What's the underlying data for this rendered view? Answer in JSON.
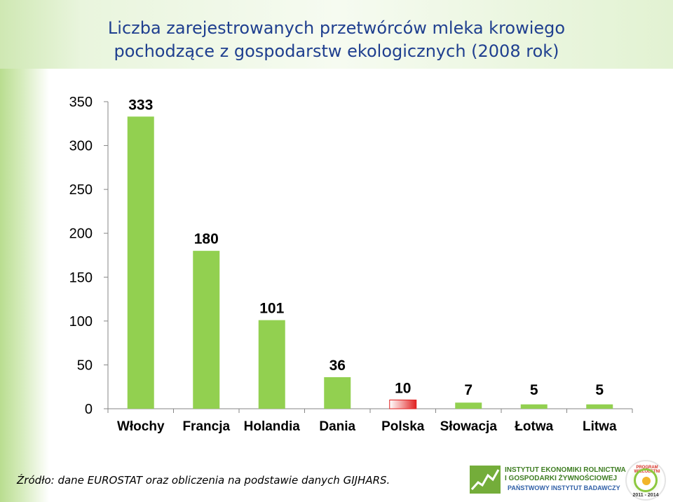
{
  "title": {
    "line1": "Liczba zarejestrowanych przetwórców mleka krowiego",
    "line2": "pochodzące z gospodarstw ekologicznych (2008 rok)"
  },
  "chart_data": {
    "type": "bar",
    "categories": [
      "Włochy",
      "Francja",
      "Holandia",
      "Dania",
      "Polska",
      "Słowacja",
      "Łotwa",
      "Litwa"
    ],
    "values": [
      333,
      180,
      101,
      36,
      10,
      7,
      5,
      5
    ],
    "data_labels": [
      "333",
      "180",
      "101",
      "36",
      "10",
      "7",
      "5",
      "5"
    ],
    "ylim": [
      0,
      350
    ],
    "yticks": [
      0,
      50,
      100,
      150,
      200,
      250,
      300,
      350
    ],
    "grid": false,
    "legend": "none",
    "colors": {
      "bar": "#92d050",
      "highlight": "#e02020",
      "highlight_category": "Polska",
      "axis": "#868686"
    }
  },
  "source": "Źródło: dane EUROSTAT oraz obliczenia na podstawie danych GIJHARS.",
  "logo": {
    "line1": "INSTYTUT EKONOMIKI ROLNICTWA",
    "line2": "I GOSPODARKI ŻYWNOŚCIOWEJ",
    "line3": "PAŃSTWOWY INSTYTUT BADAWCZY"
  },
  "badge": {
    "top": "PROGRAM WIELOLETNI",
    "years": "2011 - 2014"
  }
}
